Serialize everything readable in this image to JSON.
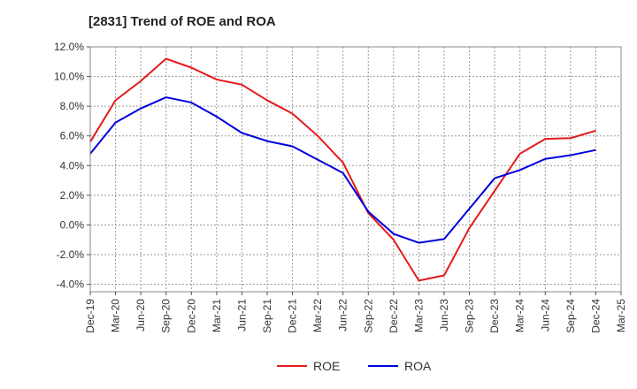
{
  "chart_data": {
    "type": "line",
    "title": "[2831]  Trend of ROE and ROA",
    "xlabel": "",
    "ylabel": "",
    "categories": [
      "Dec-19",
      "Mar-20",
      "Jun-20",
      "Sep-20",
      "Dec-20",
      "Mar-21",
      "Jun-21",
      "Sep-21",
      "Dec-21",
      "Mar-22",
      "Jun-22",
      "Sep-22",
      "Dec-22",
      "Mar-23",
      "Jun-23",
      "Sep-23",
      "Dec-23",
      "Mar-24",
      "Jun-24",
      "Sep-24",
      "Dec-24",
      "Mar-25"
    ],
    "ylim": [
      -4.5,
      12.0
    ],
    "yticks": [
      -4.0,
      -2.0,
      0.0,
      2.0,
      4.0,
      6.0,
      8.0,
      10.0,
      12.0
    ],
    "ytick_labels": [
      "-4.0%",
      "-2.0%",
      "0.0%",
      "2.0%",
      "4.0%",
      "6.0%",
      "8.0%",
      "10.0%",
      "12.0%"
    ],
    "grid": true,
    "legend": "bottom-center",
    "series": [
      {
        "name": "ROE",
        "color": "#e41a1c",
        "values": [
          5.6,
          8.4,
          9.7,
          11.2,
          10.6,
          9.8,
          9.45,
          8.4,
          7.5,
          6.0,
          4.2,
          0.8,
          -1.0,
          -3.75,
          -3.4,
          -0.2,
          2.3,
          4.8,
          5.8,
          5.85,
          6.35,
          null
        ]
      },
      {
        "name": "ROA",
        "color": "#0000dd",
        "values": [
          4.8,
          6.9,
          7.85,
          8.6,
          8.25,
          7.3,
          6.2,
          5.65,
          5.3,
          4.4,
          3.5,
          0.9,
          -0.6,
          -1.2,
          -0.95,
          1.1,
          3.15,
          3.7,
          4.45,
          4.7,
          5.05,
          null
        ]
      }
    ]
  }
}
